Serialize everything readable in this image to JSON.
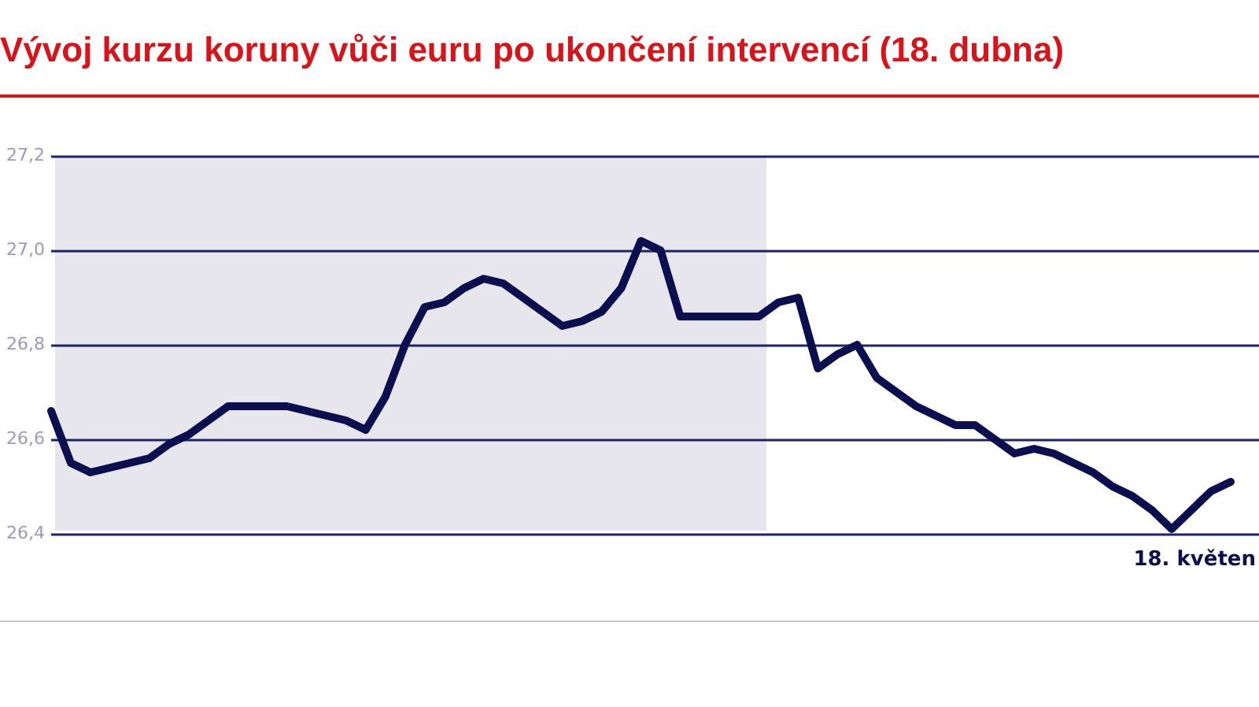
{
  "chart_data": {
    "type": "line",
    "title": "Vývoj kurzu koruny vůči euru po ukončení intervencí (18. dubna)",
    "categories": [
      null,
      null,
      null,
      null,
      null,
      null,
      null,
      null,
      null,
      null,
      null,
      null,
      null,
      null,
      null,
      null,
      null,
      null,
      null,
      null,
      null,
      null,
      null,
      null,
      null,
      null,
      null,
      null,
      null,
      null,
      null,
      null,
      null,
      null,
      null,
      null,
      null,
      null,
      null,
      null,
      null,
      null,
      null,
      null,
      null,
      null,
      null,
      null,
      null,
      null,
      null,
      null,
      null,
      null,
      null,
      null,
      null,
      null,
      null,
      null,
      null
    ],
    "series": [
      {
        "color": "#0b0f4f",
        "values": [
          26.66,
          26.55,
          26.53,
          26.54,
          26.55,
          26.56,
          26.59,
          26.61,
          26.64,
          26.67,
          26.67,
          26.67,
          26.67,
          26.66,
          26.65,
          26.64,
          26.62,
          26.69,
          26.8,
          26.88,
          26.89,
          26.92,
          26.94,
          26.93,
          26.9,
          26.87,
          26.84,
          26.85,
          26.87,
          26.92,
          27.02,
          27.0,
          26.86,
          26.86,
          26.86,
          26.86,
          26.86,
          26.89,
          26.9,
          26.75,
          26.78,
          26.8,
          26.73,
          26.7,
          26.67,
          26.65,
          26.63,
          26.63,
          26.6,
          26.57,
          26.58,
          26.57,
          26.55,
          26.53,
          26.5,
          26.48,
          26.45,
          26.41,
          26.45,
          26.49,
          26.51
        ]
      }
    ],
    "ylim": [
      26.4,
      27.2
    ],
    "yticks": [
      {
        "value": 26.4,
        "label": "26,4"
      },
      {
        "value": 26.6,
        "label": "26,6"
      },
      {
        "value": 26.8,
        "label": "26,8"
      },
      {
        "value": 27.0,
        "label": "27,0"
      },
      {
        "value": 27.2,
        "label": "27,2"
      }
    ],
    "annotations": [
      "18. květen"
    ],
    "grid": "y",
    "legend": false,
    "tick_labels": "y",
    "marker": "none",
    "line_style": "solid"
  }
}
